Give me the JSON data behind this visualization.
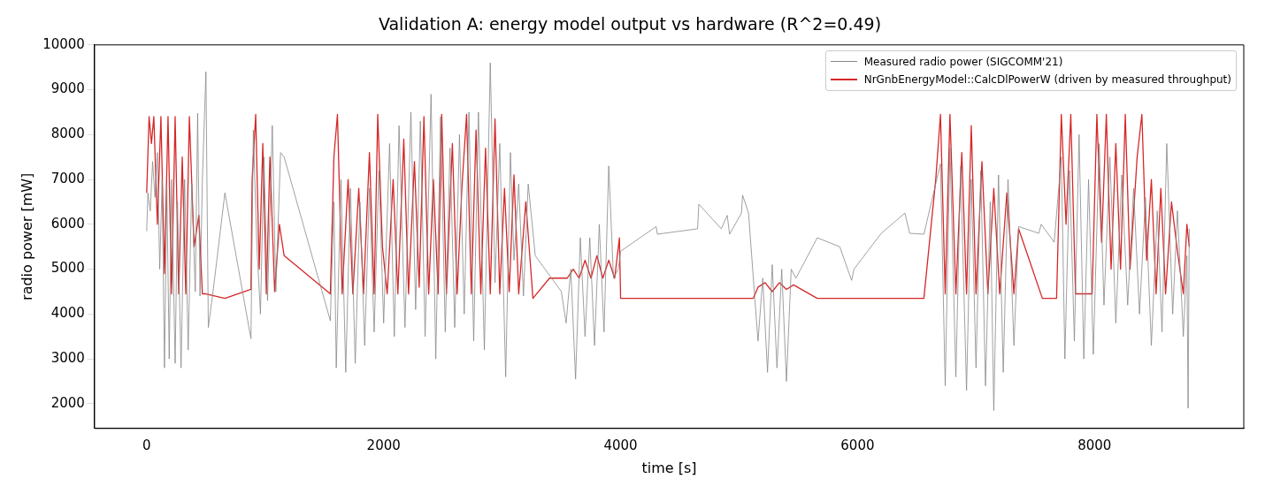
{
  "chart_data": {
    "type": "line",
    "title": "Validation A: energy model output vs hardware (R^2=0.49)",
    "xlabel": "time [s]",
    "ylabel": "radio power [mW]",
    "xlim": [
      -440,
      9260
    ],
    "ylim": [
      1450,
      10000
    ],
    "xticks": [
      0,
      2000,
      4000,
      6000,
      8000
    ],
    "yticks": [
      2000,
      3000,
      4000,
      5000,
      6000,
      7000,
      8000,
      9000,
      10000
    ],
    "grid": false,
    "legend": "top right",
    "marker": "none",
    "line_style": "solid",
    "series": [
      {
        "name": "Measured radio power (SIGCOMM'21)",
        "color": "#888888",
        "x": [
          0,
          10,
          30,
          50,
          70,
          90,
          110,
          130,
          150,
          170,
          190,
          210,
          240,
          260,
          290,
          320,
          350,
          380,
          410,
          430,
          450,
          470,
          500,
          520,
          560,
          660,
          880,
          900,
          930,
          960,
          990,
          1020,
          1060,
          1090,
          1130,
          1160,
          1550,
          1580,
          1600,
          1640,
          1680,
          1720,
          1760,
          1800,
          1840,
          1880,
          1920,
          1960,
          2000,
          2050,
          2090,
          2130,
          2180,
          2230,
          2270,
          2310,
          2350,
          2400,
          2440,
          2480,
          2520,
          2560,
          2600,
          2640,
          2680,
          2720,
          2760,
          2800,
          2850,
          2900,
          2940,
          2980,
          3030,
          3070,
          3100,
          3140,
          3180,
          3220,
          3280,
          3500,
          3540,
          3580,
          3620,
          3660,
          3700,
          3740,
          3780,
          3820,
          3860,
          3900,
          3940,
          3980,
          4000,
          4300,
          4310,
          4650,
          4660,
          4850,
          4900,
          4920,
          5020,
          5030,
          5080,
          5130,
          5160,
          5200,
          5240,
          5280,
          5320,
          5360,
          5400,
          5440,
          5480,
          5660,
          5850,
          5950,
          5970,
          6200,
          6400,
          6440,
          6560,
          6700,
          6740,
          6780,
          6830,
          6870,
          6920,
          6960,
          7000,
          7040,
          7080,
          7120,
          7150,
          7190,
          7230,
          7270,
          7320,
          7360,
          7530,
          7550,
          7660,
          7720,
          7750,
          7790,
          7830,
          7870,
          7910,
          7950,
          7990,
          8040,
          8080,
          8130,
          8180,
          8230,
          8280,
          8330,
          8380,
          8430,
          8480,
          8530,
          8570,
          8610,
          8660,
          8700,
          8750,
          8780,
          8790,
          8800
        ],
        "values": [
          5850,
          6700,
          6300,
          7400,
          6600,
          7600,
          5000,
          7000,
          2800,
          6800,
          3000,
          7000,
          2900,
          6500,
          2800,
          7000,
          3200,
          6900,
          4500,
          8480,
          4400,
          7000,
          9400,
          3700,
          4500,
          6700,
          3450,
          8100,
          5500,
          4000,
          7500,
          4300,
          8200,
          4500,
          7600,
          7500,
          3850,
          6500,
          2800,
          7000,
          2700,
          6800,
          2900,
          6500,
          3300,
          6800,
          3600,
          7200,
          3800,
          7800,
          3500,
          8200,
          3700,
          8500,
          4100,
          8300,
          3500,
          8900,
          3000,
          8400,
          3600,
          7700,
          3700,
          8000,
          4000,
          8500,
          3400,
          8500,
          3200,
          9600,
          4700,
          7800,
          2600,
          7600,
          5200,
          6900,
          4400,
          6900,
          5300,
          4500,
          3800,
          5000,
          2550,
          5700,
          3500,
          5700,
          3300,
          6000,
          3600,
          7300,
          4800,
          5000,
          5400,
          5950,
          5780,
          5900,
          6450,
          5900,
          6200,
          5780,
          6250,
          6650,
          6250,
          4450,
          3400,
          4800,
          2700,
          5100,
          2800,
          5000,
          2500,
          5000,
          4800,
          5700,
          5500,
          4750,
          5000,
          5800,
          6250,
          5800,
          5780,
          7350,
          2400,
          7700,
          2600,
          7300,
          2300,
          7000,
          2800,
          7200,
          2400,
          6500,
          1850,
          7100,
          2700,
          7000,
          3300,
          5950,
          5800,
          6000,
          5600,
          7500,
          3000,
          7200,
          3400,
          8000,
          3000,
          7000,
          3100,
          7800,
          4200,
          7500,
          3800,
          7100,
          4200,
          6800,
          4000,
          6600,
          3300,
          6300,
          3600,
          7800,
          4000,
          6300,
          3500,
          5300,
          1900,
          5900
        ]
      },
      {
        "name": "NrGnbEnergyModel::CalcDlPowerW (driven by measured throughput)",
        "color": "#d62728",
        "x": [
          0,
          20,
          40,
          60,
          90,
          120,
          150,
          180,
          210,
          240,
          270,
          300,
          330,
          360,
          400,
          440,
          470,
          500,
          660,
          880,
          890,
          920,
          950,
          980,
          1010,
          1040,
          1080,
          1120,
          1160,
          1550,
          1580,
          1610,
          1650,
          1700,
          1740,
          1790,
          1830,
          1880,
          1920,
          1950,
          1990,
          2030,
          2080,
          2120,
          2170,
          2210,
          2260,
          2300,
          2340,
          2380,
          2420,
          2460,
          2490,
          2530,
          2580,
          2620,
          2660,
          2700,
          2740,
          2780,
          2820,
          2860,
          2900,
          2940,
          2980,
          3020,
          3060,
          3100,
          3140,
          3200,
          3260,
          3400,
          3550,
          3600,
          3650,
          3700,
          3750,
          3800,
          3850,
          3900,
          3950,
          3990,
          4000,
          5120,
          5160,
          5220,
          5280,
          5340,
          5400,
          5460,
          5660,
          6560,
          6660,
          6700,
          6740,
          6780,
          6830,
          6880,
          6920,
          6960,
          7000,
          7050,
          7100,
          7150,
          7200,
          7260,
          7320,
          7360,
          7560,
          7680,
          7720,
          7760,
          7800,
          7840,
          7860,
          7980,
          8020,
          8060,
          8100,
          8140,
          8180,
          8220,
          8260,
          8300,
          8360,
          8400,
          8440,
          8480,
          8520,
          8560,
          8600,
          8650,
          8700,
          8750,
          8780,
          8800
        ],
        "values": [
          6700,
          8400,
          7800,
          8400,
          6000,
          8400,
          4900,
          8400,
          4450,
          8400,
          4450,
          7500,
          4450,
          8400,
          5500,
          6200,
          4450,
          4450,
          4350,
          4550,
          7000,
          8450,
          5000,
          7800,
          4450,
          7500,
          4500,
          6000,
          5300,
          4450,
          7500,
          8450,
          4450,
          7000,
          4450,
          6800,
          4450,
          7600,
          4450,
          8450,
          5500,
          4450,
          7000,
          4450,
          7900,
          4450,
          7400,
          4600,
          8400,
          4450,
          7000,
          4450,
          8450,
          4450,
          7800,
          4450,
          6800,
          8450,
          4450,
          8100,
          4450,
          7700,
          4450,
          8350,
          4450,
          6800,
          4500,
          7100,
          4450,
          6500,
          4350,
          4800,
          4800,
          5000,
          4800,
          5200,
          4800,
          5300,
          4800,
          5200,
          4800,
          5700,
          4350,
          4350,
          4600,
          4700,
          4500,
          4700,
          4550,
          4650,
          4350,
          4350,
          7000,
          8450,
          4450,
          8450,
          4450,
          7600,
          4450,
          8200,
          4450,
          7400,
          4450,
          6800,
          4450,
          6700,
          4450,
          5900,
          4350,
          4350,
          8450,
          6000,
          8450,
          4450,
          4450,
          4450,
          8450,
          5600,
          8450,
          5000,
          7800,
          5000,
          8450,
          5000,
          7500,
          8450,
          5200,
          7000,
          4450,
          6800,
          4450,
          6500,
          5400,
          4450,
          6000,
          5500
        ]
      }
    ]
  }
}
